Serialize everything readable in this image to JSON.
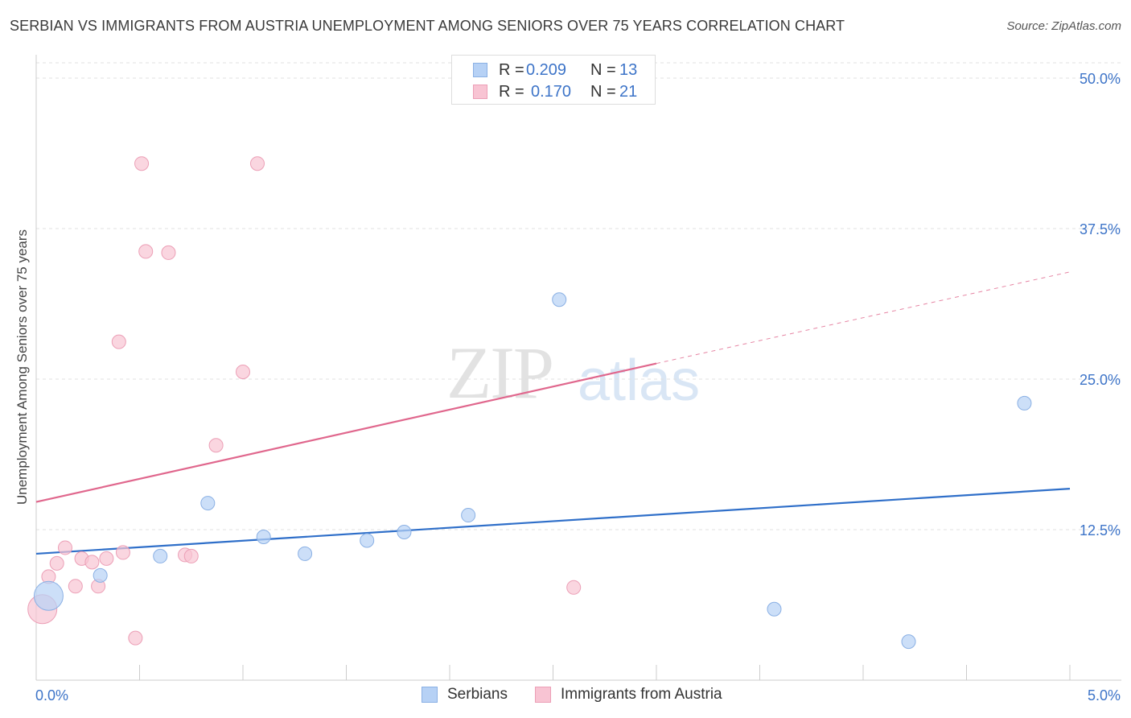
{
  "title": "SERBIAN VS IMMIGRANTS FROM AUSTRIA UNEMPLOYMENT AMONG SENIORS OVER 75 YEARS CORRELATION CHART",
  "source": "Source: ZipAtlas.com",
  "watermark": {
    "zip": "ZIP",
    "atlas": "atlas"
  },
  "colors": {
    "serbians_fill": "#b6d1f5",
    "serbians_stroke": "#8ab0e4",
    "serbians_line": "#2f6fc9",
    "austria_fill": "#f8c4d3",
    "austria_stroke": "#ec9fb6",
    "austria_line": "#e0678d",
    "tick_label": "#3d74c8",
    "grid": "#e0e0e0"
  },
  "legend_top": [
    {
      "r_label": "R = ",
      "r_value": "0.209",
      "n_label": "N = ",
      "n_value": "13"
    },
    {
      "r_label": "R = ",
      "r_value": "0.170",
      "n_label": "N = ",
      "n_value": "21"
    }
  ],
  "chart_data": {
    "type": "scatter",
    "title": "SERBIAN VS IMMIGRANTS FROM AUSTRIA UNEMPLOYMENT AMONG SENIORS OVER 75 YEARS CORRELATION CHART",
    "xlabel": "",
    "ylabel": "Unemployment Among Seniors over 75 years",
    "xlim": [
      0,
      5
    ],
    "ylim": [
      0,
      50
    ],
    "x_tick_labels": [
      "0.0%",
      "5.0%"
    ],
    "y_ticks": [
      12.5,
      25.0,
      37.5,
      50.0
    ],
    "y_tick_labels": [
      "12.5%",
      "25.0%",
      "37.5%",
      "50.0%"
    ],
    "grid": true,
    "legend_position": "bottom",
    "series": [
      {
        "name": "Serbians",
        "points": [
          {
            "x": 0.06,
            "y": 7.0,
            "size": "large"
          },
          {
            "x": 0.31,
            "y": 8.7
          },
          {
            "x": 0.6,
            "y": 10.3
          },
          {
            "x": 0.83,
            "y": 14.7
          },
          {
            "x": 1.1,
            "y": 11.9
          },
          {
            "x": 1.3,
            "y": 10.5
          },
          {
            "x": 1.6,
            "y": 11.6
          },
          {
            "x": 1.78,
            "y": 12.3
          },
          {
            "x": 2.09,
            "y": 13.7
          },
          {
            "x": 2.53,
            "y": 31.6
          },
          {
            "x": 3.57,
            "y": 5.9
          },
          {
            "x": 4.22,
            "y": 3.2
          },
          {
            "x": 4.78,
            "y": 23.0
          }
        ],
        "trend": {
          "x_start": 0,
          "y_start": 10.5,
          "x_end": 5.0,
          "y_end": 15.9
        }
      },
      {
        "name": "Immigrants from Austria",
        "points": [
          {
            "x": 0.03,
            "y": 5.9,
            "size": "large"
          },
          {
            "x": 0.06,
            "y": 8.6
          },
          {
            "x": 0.1,
            "y": 9.7
          },
          {
            "x": 0.14,
            "y": 11.0
          },
          {
            "x": 0.19,
            "y": 7.8
          },
          {
            "x": 0.22,
            "y": 10.1
          },
          {
            "x": 0.27,
            "y": 9.8
          },
          {
            "x": 0.3,
            "y": 7.8
          },
          {
            "x": 0.34,
            "y": 10.1
          },
          {
            "x": 0.42,
            "y": 10.6
          },
          {
            "x": 0.4,
            "y": 28.1
          },
          {
            "x": 0.48,
            "y": 3.5
          },
          {
            "x": 0.51,
            "y": 42.9
          },
          {
            "x": 0.53,
            "y": 35.6
          },
          {
            "x": 0.64,
            "y": 35.5
          },
          {
            "x": 0.72,
            "y": 10.4
          },
          {
            "x": 0.75,
            "y": 10.3
          },
          {
            "x": 0.87,
            "y": 19.5
          },
          {
            "x": 1.0,
            "y": 25.6
          },
          {
            "x": 1.07,
            "y": 42.9
          },
          {
            "x": 2.6,
            "y": 7.7
          }
        ],
        "trend": {
          "x_start": 0,
          "y_start": 14.8,
          "x_end": 3.0,
          "y_end": 26.3,
          "dashed_to_x": 5.0,
          "dashed_to_y": 33.9
        }
      }
    ]
  }
}
